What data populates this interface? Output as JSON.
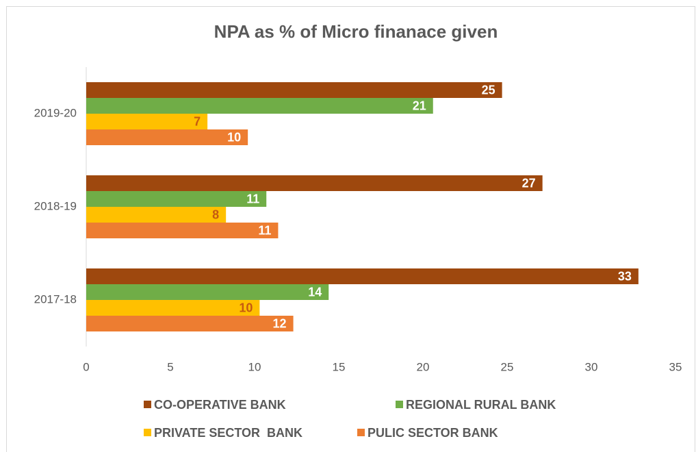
{
  "chart_data": {
    "type": "hbar",
    "title": "NPA as % of Micro finanace given",
    "categories": [
      "2017-18",
      "2018-19",
      "2019-20"
    ],
    "series": [
      {
        "name": "CO-OPERATIVE BANK",
        "color": "#9e480e",
        "label_color": "#ffffff",
        "values": [
          32.8,
          27.1,
          24.7
        ],
        "value_labels": [
          "33",
          "27",
          "25"
        ]
      },
      {
        "name": "REGIONAL RURAL BANK",
        "color": "#70ad47",
        "label_color": "#ffffff",
        "values": [
          14.4,
          10.7,
          20.6
        ],
        "value_labels": [
          "14",
          "11",
          "21"
        ]
      },
      {
        "name": "PRIVATE SECTOR  BANK",
        "color": "#ffc000",
        "label_color": "#c55a11",
        "values": [
          10.3,
          8.3,
          7.2
        ],
        "value_labels": [
          "10",
          "8",
          "7"
        ]
      },
      {
        "name": "PULIC SECTOR BANK",
        "color": "#ed7d31",
        "label_color": "#ffffff",
        "values": [
          12.3,
          11.4,
          9.6
        ],
        "value_labels": [
          "12",
          "11",
          "10"
        ]
      }
    ],
    "xlim": [
      0,
      35
    ],
    "xticks": [
      0,
      5,
      10,
      15,
      20,
      25,
      30,
      35
    ],
    "grid": false
  }
}
